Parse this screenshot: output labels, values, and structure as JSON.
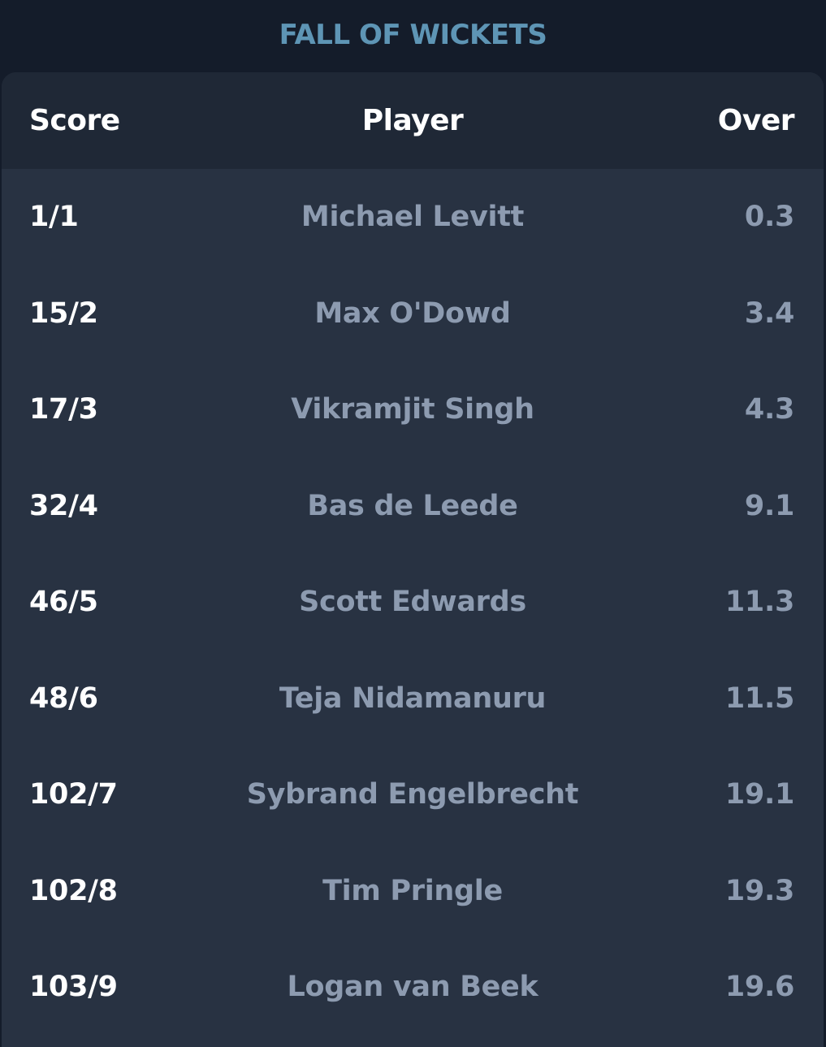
{
  "title": "FALL OF WICKETS",
  "columns": {
    "score": "Score",
    "player": "Player",
    "over": "Over"
  },
  "wickets": [
    {
      "score": "1/1",
      "player": "Michael Levitt",
      "over": "0.3"
    },
    {
      "score": "15/2",
      "player": "Max O'Dowd",
      "over": "3.4"
    },
    {
      "score": "17/3",
      "player": "Vikramjit Singh",
      "over": "4.3"
    },
    {
      "score": "32/4",
      "player": "Bas de Leede",
      "over": "9.1"
    },
    {
      "score": "46/5",
      "player": "Scott Edwards",
      "over": "11.3"
    },
    {
      "score": "48/6",
      "player": "Teja Nidamanuru",
      "over": "11.5"
    },
    {
      "score": "102/7",
      "player": "Sybrand Engelbrecht",
      "over": "19.1"
    },
    {
      "score": "102/8",
      "player": "Tim Pringle",
      "over": "19.3"
    },
    {
      "score": "103/9",
      "player": "Logan van Beek",
      "over": "19.6"
    }
  ],
  "colors": {
    "background": "#141c2a",
    "card": "#283242",
    "header": "#1f2836",
    "title": "#5e95b5",
    "score_text": "#ffffff",
    "muted_text": "#8d9bb0"
  }
}
